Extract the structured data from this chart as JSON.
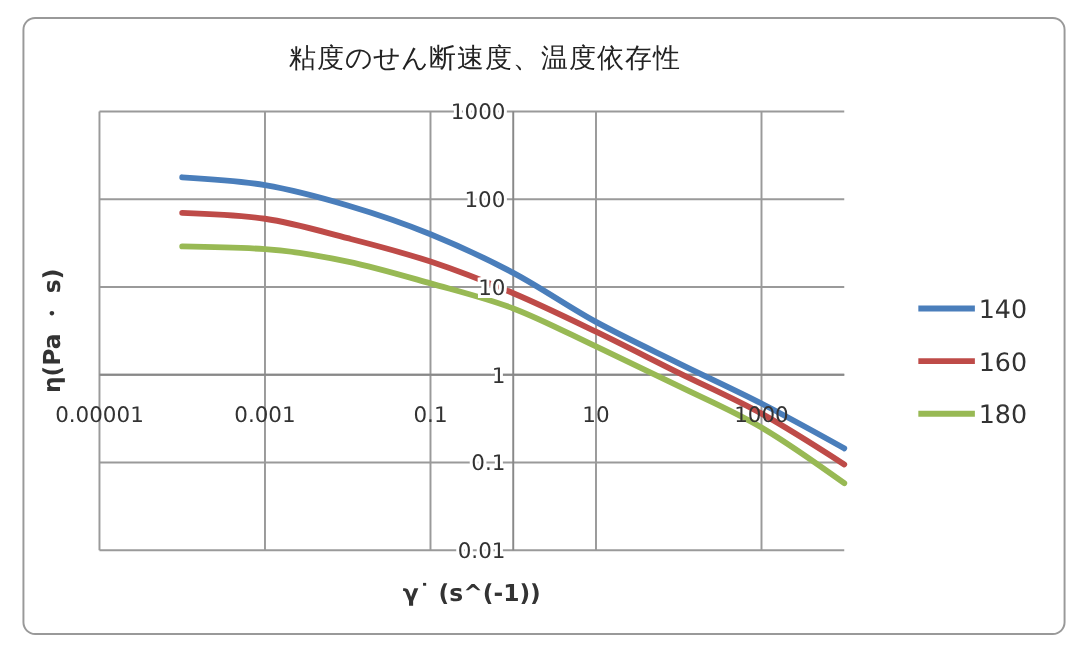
{
  "chart_data": {
    "type": "line",
    "title": "粘度のせん断速度、温度依存性",
    "xlabel": "γ˙ (s^(-1))",
    "ylabel": "η(Pa ・ s)",
    "log": "xy",
    "grid": true,
    "legend": "right",
    "marker": "none",
    "line_style": "solid",
    "x": [
      0.0001,
      0.001,
      0.01,
      0.1,
      1,
      10,
      100,
      1000,
      10000
    ],
    "xlim": [
      1e-05,
      10000
    ],
    "xticks": [
      {
        "value": 1e-05,
        "label": "0.00001"
      },
      {
        "value": 0.001,
        "label": "0.001"
      },
      0.1,
      10,
      1000
    ],
    "ylim": [
      0.01,
      1000
    ],
    "yticks": [
      0.01,
      0.1,
      1,
      10,
      100,
      1000
    ],
    "series": [
      {
        "name": "140",
        "color": "#4a7ebb",
        "values": [
          178,
          145,
          85,
          40,
          14.5,
          4,
          1.35,
          0.47,
          0.145
        ]
      },
      {
        "name": "160",
        "color": "#be4b48",
        "values": [
          70,
          60,
          36,
          19.5,
          8.5,
          3.1,
          1.05,
          0.36,
          0.095
        ]
      },
      {
        "name": "180",
        "color": "#98b954",
        "values": [
          29,
          27,
          19.5,
          11,
          5.7,
          2.1,
          0.74,
          0.25,
          0.058
        ]
      }
    ]
  }
}
